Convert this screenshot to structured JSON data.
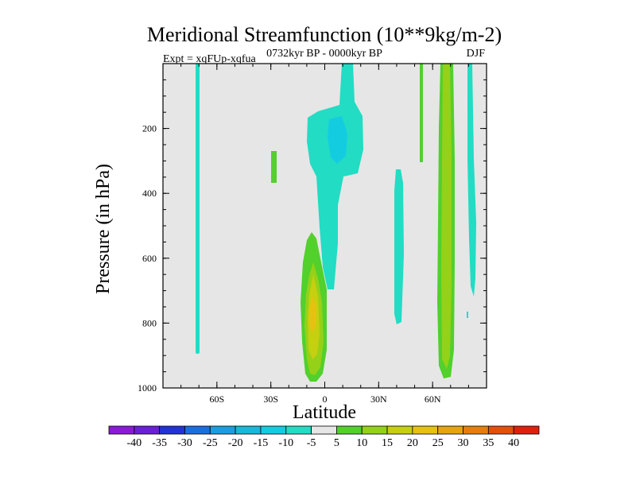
{
  "chart_data": {
    "type": "contour",
    "title": "Meridional Streamfunction (10**9kg/m-2)",
    "subtitle_left": "Expt = xqFUp-xqfua",
    "subtitle_center": "0732kyr BP - 0000kyr BP",
    "subtitle_right": "DJF",
    "xlabel": "Latitude",
    "ylabel": "Pressure (in hPa)",
    "xlim": [
      -90,
      90
    ],
    "ylim": [
      1000,
      0
    ],
    "x_ticks": [
      {
        "value": -60,
        "label": "60S"
      },
      {
        "value": -30,
        "label": "30S"
      },
      {
        "value": 0,
        "label": "0"
      },
      {
        "value": 30,
        "label": "30N"
      },
      {
        "value": 60,
        "label": "60N"
      }
    ],
    "y_ticks": [
      {
        "value": 200,
        "label": "200"
      },
      {
        "value": 400,
        "label": "400"
      },
      {
        "value": 600,
        "label": "600"
      },
      {
        "value": 800,
        "label": "800"
      },
      {
        "value": 1000,
        "label": "1000"
      }
    ],
    "colorbar": {
      "labels": [
        "-40",
        "-35",
        "-30",
        "-25",
        "-20",
        "-15",
        "-10",
        "-5",
        "5",
        "10",
        "15",
        "20",
        "25",
        "30",
        "35",
        "40"
      ],
      "colors": [
        "#8a1ad8",
        "#6a1fd9",
        "#2232d5",
        "#1a6ee0",
        "#1a9ee0",
        "#17b8d8",
        "#14cce0",
        "#22dcc4",
        "#e6e6e6",
        "#52d02c",
        "#94d118",
        "#c6cf10",
        "#e6c210",
        "#e6a40e",
        "#e67e0c",
        "#e4500c",
        "#e0200c"
      ]
    },
    "features": [
      {
        "name": "positive-cell-equator",
        "sign": "positive",
        "peak": 25,
        "lat": [
          -14,
          0
        ],
        "pressure": [
          520,
          980
        ]
      },
      {
        "name": "negative-cell-upper-tropics",
        "sign": "negative",
        "peak": -15,
        "lat": [
          -6,
          18
        ],
        "pressure": [
          0,
          700
        ]
      },
      {
        "name": "positive-column-60N",
        "sign": "positive",
        "peak": 20,
        "lat": [
          55,
          63
        ],
        "pressure": [
          0,
          970
        ]
      },
      {
        "name": "negative-column-40N",
        "sign": "negative",
        "peak": -10,
        "lat": [
          41,
          45
        ],
        "pressure": [
          300,
          800
        ]
      },
      {
        "name": "negative-column-70S",
        "sign": "negative",
        "peak": -10,
        "lat": [
          -71,
          -70
        ],
        "pressure": [
          0,
          880
        ]
      },
      {
        "name": "negative-column-73N",
        "sign": "negative",
        "peak": -10,
        "lat": [
          72,
          75
        ],
        "pressure": [
          0,
          720
        ]
      },
      {
        "name": "positive-blob-28S",
        "sign": "positive",
        "peak": 5,
        "lat": [
          -28,
          -26
        ],
        "pressure": [
          270,
          360
        ]
      },
      {
        "name": "positive-strip-53N",
        "sign": "positive",
        "peak": 5,
        "lat": [
          52,
          53
        ],
        "pressure": [
          0,
          290
        ]
      }
    ]
  }
}
